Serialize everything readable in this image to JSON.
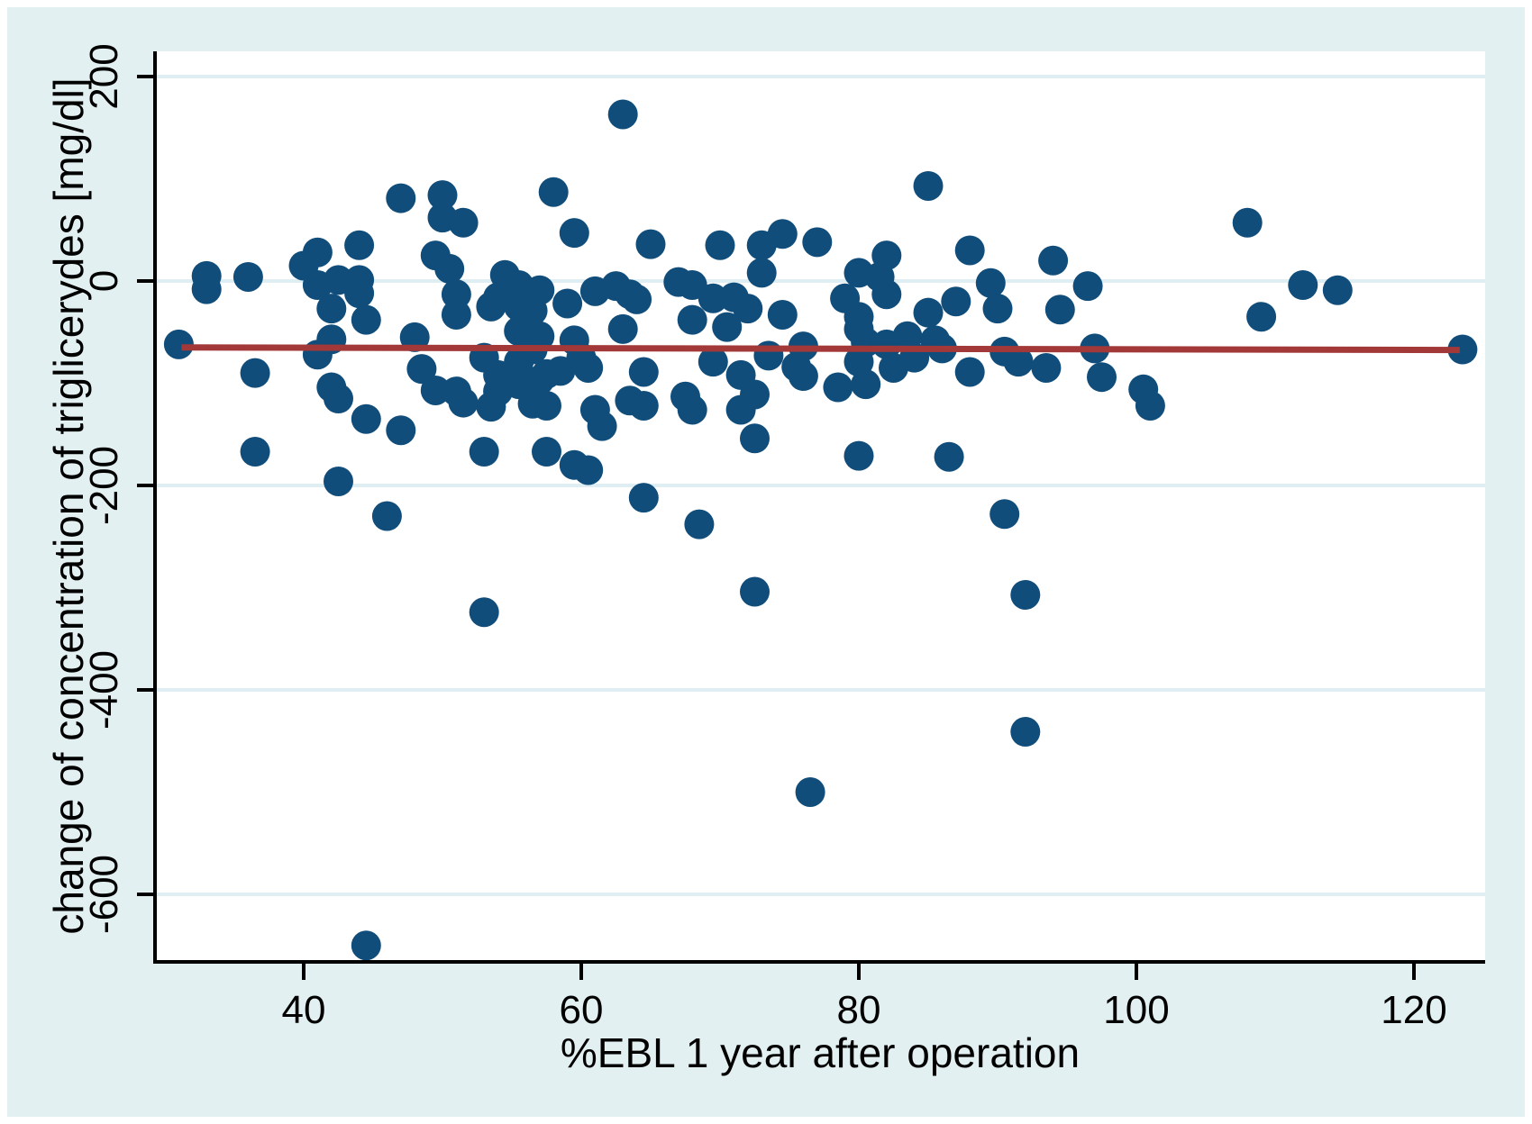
{
  "chart_data": {
    "type": "scatter",
    "title": "",
    "xlabel": "%EBL 1 year after operation",
    "ylabel": "change of concentration of  triglicerydes [mg/dl]",
    "x_ticks": [
      40,
      60,
      80,
      100,
      120
    ],
    "y_ticks": [
      200,
      0,
      -200,
      -400,
      -600
    ],
    "xlim": [
      29.3,
      125.2
    ],
    "ylim": [
      -668,
      223
    ],
    "grid": "horizontal-only",
    "legend": "none",
    "colors": {
      "point": "#114d7a",
      "trend_line": "#a33838",
      "panel_background": "#e3f0f2",
      "plot_background": "#ffffff",
      "gridline": "#deeef2",
      "axis": "#000000"
    },
    "trend_line": {
      "x_start": 31.2,
      "y_start": -65,
      "x_end": 123.3,
      "y_end": -67.5
    },
    "points": [
      [
        33,
        5
      ],
      [
        33,
        -8
      ],
      [
        36,
        4
      ],
      [
        40,
        15
      ],
      [
        41,
        28
      ],
      [
        41,
        -4
      ],
      [
        44,
        35
      ],
      [
        42.5,
        1
      ],
      [
        44,
        1
      ],
      [
        44,
        -12
      ],
      [
        42,
        -27
      ],
      [
        47,
        81
      ],
      [
        50,
        84
      ],
      [
        50,
        62
      ],
      [
        51.5,
        57
      ],
      [
        49.5,
        25
      ],
      [
        50.5,
        12
      ],
      [
        51,
        -13
      ],
      [
        51,
        -33
      ],
      [
        54.5,
        6
      ],
      [
        55.5,
        -4
      ],
      [
        54,
        -16
      ],
      [
        55.5,
        -25
      ],
      [
        53.5,
        -25
      ],
      [
        56.5,
        -29
      ],
      [
        57,
        -9
      ],
      [
        58,
        87
      ],
      [
        59.5,
        47
      ],
      [
        59,
        -22
      ],
      [
        61,
        -10
      ],
      [
        63,
        163
      ],
      [
        85,
        93
      ],
      [
        65,
        36
      ],
      [
        70,
        35
      ],
      [
        73,
        35
      ],
      [
        74.5,
        46
      ],
      [
        77,
        38
      ],
      [
        73,
        8
      ],
      [
        62.5,
        -5
      ],
      [
        63.5,
        -13
      ],
      [
        64,
        -18
      ],
      [
        67,
        -1
      ],
      [
        68,
        -4
      ],
      [
        69.5,
        -17
      ],
      [
        71,
        -16
      ],
      [
        72,
        -27
      ],
      [
        68,
        -38
      ],
      [
        74.5,
        -33
      ],
      [
        79,
        -17
      ],
      [
        80,
        -35
      ],
      [
        80,
        8
      ],
      [
        81.5,
        4
      ],
      [
        82,
        25
      ],
      [
        82,
        -13
      ],
      [
        85,
        -31
      ],
      [
        87,
        -20
      ],
      [
        88,
        30
      ],
      [
        89.5,
        -2
      ],
      [
        90,
        -27
      ],
      [
        94,
        20
      ],
      [
        108,
        57
      ],
      [
        96.5,
        -5
      ],
      [
        94.5,
        -28
      ],
      [
        112,
        -4
      ],
      [
        114.5,
        -9
      ],
      [
        109,
        -35
      ],
      [
        31,
        -62
      ],
      [
        36.5,
        -90
      ],
      [
        41,
        -72
      ],
      [
        42,
        -57
      ],
      [
        42,
        -104
      ],
      [
        42.5,
        -115
      ],
      [
        36.5,
        -167
      ],
      [
        44.5,
        -135
      ],
      [
        44.5,
        -38
      ],
      [
        47,
        -146
      ],
      [
        48,
        -55
      ],
      [
        48.5,
        -86
      ],
      [
        49.5,
        -107
      ],
      [
        42.5,
        -196
      ],
      [
        46,
        -230
      ],
      [
        51,
        -108
      ],
      [
        51.5,
        -119
      ],
      [
        53,
        -75
      ],
      [
        54,
        -92
      ],
      [
        54,
        -108
      ],
      [
        53.5,
        -123
      ],
      [
        55.5,
        -49
      ],
      [
        57,
        -54
      ],
      [
        56.5,
        -67
      ],
      [
        59.5,
        -58
      ],
      [
        55.5,
        -79
      ],
      [
        55.5,
        -101
      ],
      [
        57,
        -97
      ],
      [
        57.5,
        -91
      ],
      [
        58.5,
        -88
      ],
      [
        56.5,
        -120
      ],
      [
        57.5,
        -122
      ],
      [
        60,
        -75
      ],
      [
        60.5,
        -85
      ],
      [
        61,
        -126
      ],
      [
        61.5,
        -142
      ],
      [
        57.5,
        -167
      ],
      [
        53,
        -167
      ],
      [
        59.5,
        -180
      ],
      [
        60.5,
        -185
      ],
      [
        63,
        -47
      ],
      [
        64.5,
        -89
      ],
      [
        63.5,
        -117
      ],
      [
        64.5,
        -122
      ],
      [
        67.5,
        -113
      ],
      [
        68,
        -126
      ],
      [
        69.5,
        -79
      ],
      [
        70.5,
        -45
      ],
      [
        71.5,
        -92
      ],
      [
        71.5,
        -126
      ],
      [
        72.5,
        -111
      ],
      [
        72.5,
        -154
      ],
      [
        73.5,
        -73
      ],
      [
        76,
        -64
      ],
      [
        75.5,
        -84
      ],
      [
        76,
        -93
      ],
      [
        78.5,
        -104
      ],
      [
        80,
        -47
      ],
      [
        80.5,
        -60
      ],
      [
        80,
        -79
      ],
      [
        80.5,
        -101
      ],
      [
        80,
        -171
      ],
      [
        82,
        -62
      ],
      [
        82.5,
        -85
      ],
      [
        83.5,
        -54
      ],
      [
        84,
        -75
      ],
      [
        85.5,
        -58
      ],
      [
        86,
        -66
      ],
      [
        86.5,
        -172
      ],
      [
        88,
        -89
      ],
      [
        90.5,
        -69
      ],
      [
        91.5,
        -79
      ],
      [
        64.5,
        -212
      ],
      [
        68.5,
        -238
      ],
      [
        90.5,
        -228
      ],
      [
        72.5,
        -304
      ],
      [
        92,
        -307
      ],
      [
        92,
        -441
      ],
      [
        97,
        -66
      ],
      [
        93.5,
        -85
      ],
      [
        97.5,
        -94
      ],
      [
        100.5,
        -106
      ],
      [
        101,
        -122
      ],
      [
        123.5,
        -67
      ],
      [
        53,
        -324
      ],
      [
        76.5,
        -500
      ],
      [
        44.5,
        -650
      ]
    ]
  }
}
